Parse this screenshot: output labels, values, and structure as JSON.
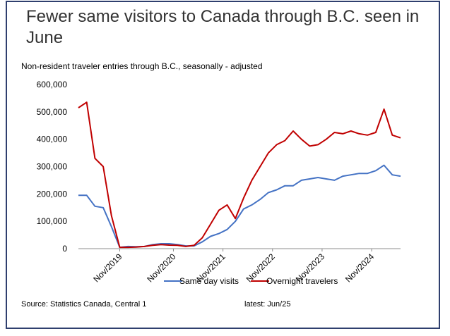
{
  "slide": {
    "title": "Fewer same visitors to Canada through B.C. seen in June",
    "source": "Source: Statistics Canada, Central 1",
    "latest": "latest: Jun/25"
  },
  "chart_data": {
    "type": "line",
    "title": "Non-resident traveler entries through B.C., seasonally - adjusted",
    "xlabel": "",
    "ylabel": "",
    "ylim": [
      0,
      600000
    ],
    "yticks": [
      "0",
      "100,000",
      "200,000",
      "300,000",
      "400,000",
      "500,000",
      "600,000"
    ],
    "xticks": [
      "Nov/2019",
      "Nov/2020",
      "Nov/2021",
      "Nov/2022",
      "Nov/2023",
      "Nov/2024"
    ],
    "x": [
      "Jan/2019",
      "Mar/2019",
      "May/2019",
      "Jul/2019",
      "Sep/2019",
      "Nov/2019",
      "Jan/2020",
      "Mar/2020",
      "Apr/2020",
      "Jun/2020",
      "Aug/2020",
      "Oct/2020",
      "Dec/2020",
      "Feb/2021",
      "Apr/2021",
      "Jun/2021",
      "Aug/2021",
      "Oct/2021",
      "Dec/2021",
      "Feb/2022",
      "Apr/2022",
      "Jun/2022",
      "Aug/2022",
      "Oct/2022",
      "Dec/2022",
      "Feb/2023",
      "Apr/2023",
      "Jun/2023",
      "Aug/2023",
      "Oct/2023",
      "Dec/2023",
      "Feb/2024",
      "Apr/2024",
      "Jun/2024",
      "Aug/2024",
      "Oct/2024",
      "Dec/2024",
      "Feb/2025",
      "Apr/2025",
      "Jun/2025"
    ],
    "series": [
      {
        "name": "Same day visits",
        "color": "#4472c4",
        "values": [
          195000,
          195000,
          155000,
          150000,
          80000,
          5000,
          8000,
          7000,
          8000,
          15000,
          18000,
          18000,
          15000,
          10000,
          10000,
          25000,
          45000,
          55000,
          70000,
          100000,
          145000,
          160000,
          180000,
          205000,
          215000,
          230000,
          230000,
          250000,
          255000,
          260000,
          255000,
          250000,
          265000,
          270000,
          275000,
          275000,
          285000,
          305000,
          270000,
          265000
        ]
      },
      {
        "name": "Overnight travelers",
        "color": "#c00000",
        "values": [
          515000,
          535000,
          330000,
          300000,
          120000,
          5000,
          5000,
          6000,
          8000,
          12000,
          15000,
          13000,
          12000,
          8000,
          12000,
          40000,
          90000,
          140000,
          160000,
          110000,
          185000,
          250000,
          300000,
          350000,
          380000,
          395000,
          430000,
          400000,
          375000,
          380000,
          400000,
          425000,
          420000,
          430000,
          420000,
          415000,
          425000,
          510000,
          415000,
          405000
        ]
      }
    ],
    "legend": "bottom",
    "grid": false
  }
}
